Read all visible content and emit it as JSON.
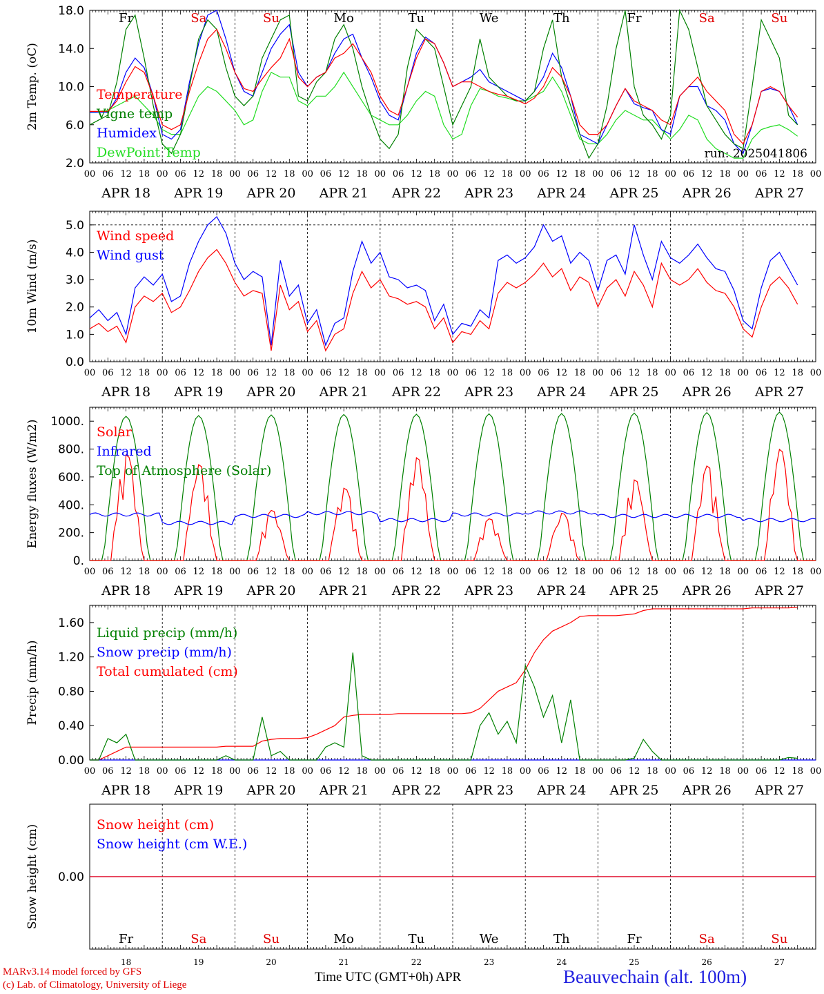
{
  "page": {
    "footer": {
      "credit_line1": "MARv3.14 model forced by GFS",
      "credit_line2": "(c) Lab. of Climatology, University of Liege",
      "x_title": "Time UTC (GMT+0h) APR",
      "station": "Beauvechain (alt. 100m)"
    },
    "days": [
      {
        "date": "APR 18",
        "num": "18",
        "dow": "Fr",
        "weekend": false
      },
      {
        "date": "APR 19",
        "num": "19",
        "dow": "Sa",
        "weekend": true
      },
      {
        "date": "APR 20",
        "num": "20",
        "dow": "Su",
        "weekend": true
      },
      {
        "date": "APR 21",
        "num": "21",
        "dow": "Mo",
        "weekend": false
      },
      {
        "date": "APR 22",
        "num": "22",
        "dow": "Tu",
        "weekend": false
      },
      {
        "date": "APR 23",
        "num": "23",
        "dow": "We",
        "weekend": false
      },
      {
        "date": "APR 24",
        "num": "24",
        "dow": "Th",
        "weekend": false
      },
      {
        "date": "APR 25",
        "num": "25",
        "dow": "Fr",
        "weekend": false
      },
      {
        "date": "APR 26",
        "num": "26",
        "dow": "Sa",
        "weekend": true
      },
      {
        "date": "APR 27",
        "num": "27",
        "dow": "Su",
        "weekend": true
      }
    ],
    "hour_labels": [
      "00",
      "06",
      "12",
      "18"
    ],
    "last_hour_label": "00",
    "colors": {
      "weekday": "#000000",
      "weekend": "#e00000"
    }
  },
  "chart_data": [
    {
      "type": "line",
      "ylabel": "2m Temp. (oC)",
      "ylim": [
        2.0,
        18.0
      ],
      "yticks": [
        "2.0",
        "6.0",
        "10.0",
        "14.0",
        "18.0"
      ],
      "annotation": "run: 2025041806",
      "time_step_hours": 3,
      "series": [
        {
          "name": "Temperature",
          "color": "#ff0000",
          "values": [
            7.4,
            7.4,
            7.4,
            8.5,
            10.5,
            12.1,
            11.5,
            9.0,
            6.0,
            5.5,
            6.0,
            9.5,
            12.5,
            15.0,
            16.0,
            14.0,
            11.5,
            9.8,
            9.5,
            10.8,
            12.0,
            13.0,
            15.0,
            11.0,
            10.0,
            11.0,
            11.5,
            13.0,
            13.5,
            14.5,
            13.0,
            11.5,
            9.0,
            7.5,
            7.0,
            10.0,
            13.0,
            15.0,
            14.5,
            12.5,
            10.0,
            10.5,
            10.5,
            10.0,
            9.5,
            9.2,
            9.0,
            8.6,
            8.2,
            8.8,
            10.0,
            12.0,
            11.0,
            9.0,
            6.0,
            5.0,
            5.0,
            6.0,
            8.0,
            9.8,
            8.5,
            8.0,
            7.5,
            6.5,
            6.0,
            9.0,
            10.0,
            11.0,
            9.5,
            8.5,
            7.5,
            5.0,
            4.0,
            6.0,
            9.5,
            10.0,
            9.5,
            8.0,
            6.8
          ]
        },
        {
          "name": "Vigne temp",
          "color": "#008000",
          "values": [
            6.0,
            6.5,
            7.0,
            10.5,
            16.0,
            17.5,
            13.0,
            8.0,
            4.0,
            3.0,
            5.0,
            10.0,
            15.0,
            17.0,
            16.0,
            12.0,
            9.0,
            8.0,
            9.0,
            13.0,
            15.0,
            17.0,
            17.5,
            9.0,
            8.5,
            10.5,
            11.5,
            15.0,
            16.5,
            14.0,
            10.0,
            7.0,
            4.5,
            3.5,
            5.0,
            12.0,
            16.0,
            15.0,
            14.0,
            10.0,
            6.0,
            8.0,
            10.0,
            15.0,
            11.0,
            10.0,
            9.0,
            8.5,
            8.5,
            9.5,
            14.0,
            17.0,
            11.0,
            8.0,
            5.0,
            2.5,
            4.0,
            8.0,
            14.0,
            18.0,
            10.0,
            7.0,
            6.0,
            4.5,
            7.0,
            18.0,
            16.0,
            12.0,
            8.0,
            6.5,
            5.0,
            4.0,
            3.5,
            10.0,
            17.0,
            15.0,
            13.0,
            7.0,
            6.0
          ]
        },
        {
          "name": "Humidex",
          "color": "#0000ff",
          "values": [
            7.3,
            7.3,
            7.3,
            8.8,
            11.5,
            13.0,
            12.0,
            9.0,
            5.0,
            4.5,
            5.5,
            10.5,
            14.5,
            17.5,
            18.0,
            15.0,
            11.5,
            9.5,
            9.0,
            11.5,
            14.0,
            15.5,
            16.5,
            11.5,
            10.0,
            11.0,
            11.5,
            13.5,
            15.0,
            15.5,
            13.0,
            11.0,
            8.5,
            7.0,
            6.5,
            10.0,
            13.5,
            15.2,
            14.5,
            12.5,
            10.0,
            10.5,
            11.0,
            11.8,
            10.5,
            10.0,
            9.5,
            9.0,
            8.5,
            9.5,
            11.0,
            13.5,
            12.0,
            9.0,
            5.0,
            4.5,
            4.0,
            6.0,
            8.0,
            9.8,
            8.2,
            7.8,
            7.5,
            5.5,
            5.0,
            9.0,
            10.0,
            10.0,
            8.0,
            7.5,
            6.5,
            4.0,
            3.0,
            6.0,
            9.5,
            9.8,
            9.5,
            8.0,
            6.0
          ]
        },
        {
          "name": "DewPoint Temp",
          "color": "#22dd22",
          "values": [
            7.3,
            7.4,
            7.5,
            8.0,
            8.5,
            9.0,
            8.0,
            7.0,
            5.5,
            5.0,
            5.0,
            7.0,
            9.0,
            10.0,
            9.5,
            8.5,
            7.5,
            6.0,
            6.5,
            9.5,
            11.5,
            11.0,
            11.0,
            8.5,
            8.0,
            9.0,
            9.0,
            10.0,
            11.5,
            10.0,
            8.5,
            7.0,
            6.5,
            6.0,
            6.0,
            7.0,
            8.5,
            9.5,
            9.0,
            6.0,
            4.5,
            5.0,
            8.0,
            9.8,
            9.5,
            9.0,
            8.8,
            8.5,
            8.5,
            9.0,
            9.5,
            11.0,
            9.5,
            7.0,
            4.5,
            4.0,
            4.0,
            5.0,
            6.5,
            7.5,
            7.0,
            6.5,
            6.5,
            5.5,
            4.5,
            5.5,
            7.0,
            6.5,
            4.5,
            3.5,
            3.0,
            2.5,
            2.5,
            4.5,
            5.5,
            5.8,
            6.0,
            5.5,
            4.8
          ]
        }
      ]
    },
    {
      "type": "line",
      "ylabel": "10m Wind (m/s)",
      "ylim": [
        0.0,
        5.5
      ],
      "yticks": [
        "0.0",
        "1.0",
        "2.0",
        "3.0",
        "4.0",
        "5.0"
      ],
      "ref_line": 5.0,
      "time_step_hours": 3,
      "series": [
        {
          "name": "Wind speed",
          "color": "#ff0000",
          "values": [
            1.2,
            1.4,
            1.1,
            1.3,
            0.7,
            2.0,
            2.4,
            2.2,
            2.5,
            1.8,
            2.0,
            2.6,
            3.3,
            3.8,
            4.1,
            3.6,
            2.9,
            2.4,
            2.6,
            2.5,
            0.4,
            2.8,
            1.9,
            2.2,
            1.1,
            1.5,
            0.4,
            1.0,
            1.2,
            2.5,
            3.3,
            2.7,
            3.0,
            2.4,
            2.3,
            2.1,
            2.2,
            2.0,
            1.2,
            1.6,
            0.7,
            1.1,
            1.0,
            1.5,
            1.2,
            2.5,
            2.9,
            2.7,
            2.9,
            3.2,
            3.6,
            3.1,
            3.4,
            2.6,
            3.1,
            2.9,
            2.0,
            2.7,
            3.0,
            2.4,
            3.3,
            2.8,
            2.0,
            3.6,
            3.0,
            2.8,
            3.0,
            3.4,
            2.9,
            2.6,
            2.5,
            2.0,
            1.2,
            0.9,
            2.0,
            2.8,
            3.1,
            2.7,
            2.1
          ]
        },
        {
          "name": "Wind gust",
          "color": "#0000ff",
          "values": [
            1.6,
            1.9,
            1.5,
            1.8,
            1.0,
            2.7,
            3.1,
            2.8,
            3.2,
            2.2,
            2.4,
            3.6,
            4.4,
            5.0,
            5.3,
            4.7,
            3.6,
            3.0,
            3.3,
            3.1,
            0.6,
            3.7,
            2.4,
            2.8,
            1.4,
            1.9,
            0.6,
            1.4,
            1.6,
            3.3,
            4.4,
            3.6,
            4.0,
            3.1,
            3.0,
            2.7,
            2.8,
            2.6,
            1.5,
            2.1,
            1.0,
            1.4,
            1.3,
            1.9,
            1.6,
            3.7,
            3.9,
            3.6,
            3.8,
            4.2,
            5.0,
            4.4,
            4.6,
            3.6,
            4.0,
            3.7,
            2.6,
            3.7,
            3.9,
            3.2,
            5.0,
            3.9,
            3.0,
            4.4,
            3.8,
            3.6,
            3.9,
            4.3,
            3.8,
            3.4,
            3.3,
            2.6,
            1.5,
            1.2,
            2.7,
            3.7,
            4.0,
            3.4,
            2.8
          ]
        }
      ]
    },
    {
      "type": "line",
      "ylabel": "Energy fluxes (W/m2)",
      "ylim": [
        0,
        1100
      ],
      "yticks": [
        "0.",
        "200.",
        "400.",
        "600.",
        "800.",
        "1000."
      ],
      "time_step_hours": 1,
      "series": [
        {
          "name": "Solar",
          "color": "#ff0000",
          "solar_peaks": [
            760,
            690,
            360,
            520,
            740,
            300,
            340,
            580,
            680,
            800
          ]
        },
        {
          "name": "Infrared",
          "color": "#0000ff",
          "daily_levels": [
            330,
            270,
            320,
            340,
            290,
            330,
            345,
            320,
            320,
            290
          ]
        },
        {
          "name": "Top of Atmosphere (Solar)",
          "color": "#008000",
          "toa_peaks": [
            1035,
            1040,
            1045,
            1048,
            1050,
            1053,
            1055,
            1058,
            1062,
            1065
          ]
        }
      ]
    },
    {
      "type": "line",
      "ylabel": "Precip (mm/h)",
      "ylim": [
        0.0,
        1.8
      ],
      "yticks": [
        "0.00",
        "0.40",
        "0.80",
        "1.20",
        "1.60"
      ],
      "time_step_hours": 3,
      "series": [
        {
          "name": "Liquid precip (mm/h)",
          "color": "#008000",
          "values": [
            0,
            0,
            0.25,
            0.2,
            0.3,
            0,
            0,
            0,
            0,
            0,
            0,
            0,
            0,
            0,
            0,
            0.05,
            0,
            0,
            0,
            0.5,
            0.05,
            0.1,
            0,
            0,
            0,
            0,
            0.15,
            0.2,
            0.15,
            1.25,
            0.05,
            0,
            0,
            0,
            0,
            0,
            0,
            0,
            0,
            0,
            0,
            0,
            0,
            0.4,
            0.55,
            0.3,
            0.45,
            0.2,
            1.1,
            0.85,
            0.5,
            0.75,
            0.2,
            0.7,
            0,
            0,
            0,
            0,
            0,
            0,
            0.02,
            0.24,
            0.1,
            0,
            0,
            0,
            0,
            0,
            0,
            0,
            0,
            0,
            0,
            0,
            0,
            0,
            0,
            0.03,
            0.02
          ]
        },
        {
          "name": "Snow precip (mm/h)",
          "color": "#0000ff",
          "values": [
            0,
            0,
            0,
            0,
            0,
            0,
            0,
            0,
            0,
            0,
            0,
            0,
            0,
            0,
            0,
            0,
            0,
            0,
            0,
            0,
            0,
            0,
            0,
            0,
            0,
            0,
            0,
            0,
            0,
            0,
            0,
            0,
            0,
            0,
            0,
            0,
            0,
            0,
            0,
            0,
            0,
            0,
            0,
            0,
            0,
            0,
            0,
            0,
            0,
            0,
            0,
            0,
            0,
            0,
            0,
            0,
            0,
            0,
            0,
            0,
            0,
            0,
            0,
            0,
            0,
            0,
            0,
            0,
            0,
            0,
            0,
            0,
            0,
            0,
            0,
            0,
            0,
            0,
            0,
            0,
            0
          ]
        },
        {
          "name": "Total cumulated (cm)",
          "color": "#ff0000",
          "values": [
            0,
            0,
            0.05,
            0.1,
            0.15,
            0.15,
            0.15,
            0.15,
            0.15,
            0.15,
            0.15,
            0.15,
            0.15,
            0.15,
            0.15,
            0.16,
            0.16,
            0.16,
            0.16,
            0.22,
            0.24,
            0.25,
            0.25,
            0.25,
            0.26,
            0.3,
            0.35,
            0.4,
            0.5,
            0.52,
            0.53,
            0.53,
            0.53,
            0.53,
            0.54,
            0.54,
            0.54,
            0.54,
            0.54,
            0.54,
            0.54,
            0.54,
            0.55,
            0.6,
            0.7,
            0.8,
            0.85,
            0.9,
            1.05,
            1.25,
            1.4,
            1.5,
            1.55,
            1.6,
            1.67,
            1.68,
            1.68,
            1.68,
            1.68,
            1.69,
            1.7,
            1.74,
            1.76,
            1.76,
            1.76,
            1.76,
            1.76,
            1.76,
            1.76,
            1.76,
            1.76,
            1.76,
            1.76,
            1.77,
            1.77,
            1.77,
            1.77,
            1.77,
            1.78
          ]
        }
      ]
    },
    {
      "type": "line",
      "ylabel": "Snow height (cm)",
      "ylim": [
        -1.0,
        1.0
      ],
      "yticks": [
        "0.00"
      ],
      "time_step_hours": 24,
      "series": [
        {
          "name": "Snow height (cm)",
          "color": "#ff0000",
          "values": [
            0,
            0,
            0,
            0,
            0,
            0,
            0,
            0,
            0,
            0,
            0
          ]
        },
        {
          "name": "Snow height (cm W.E.)",
          "color": "#0000ff",
          "values": [
            0,
            0,
            0,
            0,
            0,
            0,
            0,
            0,
            0,
            0,
            0
          ]
        }
      ]
    }
  ]
}
